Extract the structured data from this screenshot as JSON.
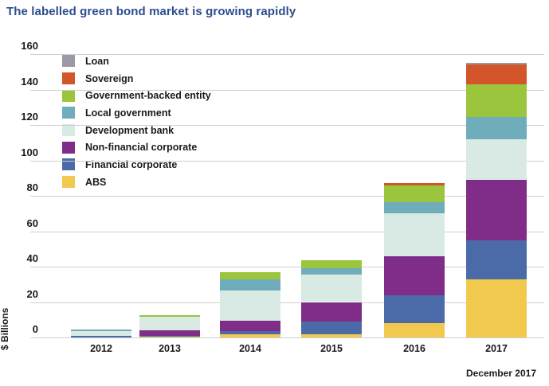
{
  "title": "The labelled green bond market is growing rapidly",
  "footnote": "December 2017",
  "colors": {
    "title_blue": "#2d4d8e",
    "gridline": "#cfcfcf",
    "text": "#1a1a1a",
    "background": "#ffffff"
  },
  "chart_data": {
    "type": "bar",
    "stacked": true,
    "title": "The labelled green bond market is growing rapidly",
    "xlabel": "",
    "ylabel": "$ Billions",
    "ylim": [
      0,
      160
    ],
    "ytick_interval": 20,
    "yticks": [
      0,
      20,
      40,
      60,
      80,
      100,
      120,
      140,
      160
    ],
    "grid": true,
    "legend_position": "top-left",
    "legend_order_note": "legend listed top-to-bottom; stacking order in bars matches (Loan on top, ABS at bottom)",
    "categories": [
      "2012",
      "2013",
      "2014",
      "2015",
      "2016",
      "2017"
    ],
    "series": [
      {
        "name": "Loan",
        "color": "#9b99a5",
        "values": [
          0,
          0,
          0,
          0,
          0,
          1
        ]
      },
      {
        "name": "Sovereign",
        "color": "#d2562a",
        "values": [
          0,
          0,
          0,
          0,
          1,
          11
        ]
      },
      {
        "name": "Government-backed entity",
        "color": "#9bc53d",
        "values": [
          0,
          1,
          4,
          4.5,
          9.5,
          18.5
        ]
      },
      {
        "name": "Local government",
        "color": "#6fadbb",
        "values": [
          1,
          0,
          6.5,
          3.5,
          6.5,
          12.5
        ]
      },
      {
        "name": "Development bank",
        "color": "#d9eae5",
        "values": [
          2.5,
          7.5,
          17,
          15.5,
          24,
          23
        ]
      },
      {
        "name": "Non-financial corporate",
        "color": "#7f2d88",
        "values": [
          0,
          3,
          6,
          11,
          22,
          34
        ]
      },
      {
        "name": "Financial corporate",
        "color": "#4a6aa8",
        "values": [
          1,
          0.5,
          1.5,
          7,
          16,
          22
        ]
      },
      {
        "name": "ABS",
        "color": "#f2c94f",
        "values": [
          0,
          0.5,
          2,
          2,
          8,
          33
        ]
      }
    ],
    "totals": [
      4.5,
      12.5,
      37,
      43.5,
      87,
      155
    ],
    "units": "$ Billions (USD bn)"
  }
}
